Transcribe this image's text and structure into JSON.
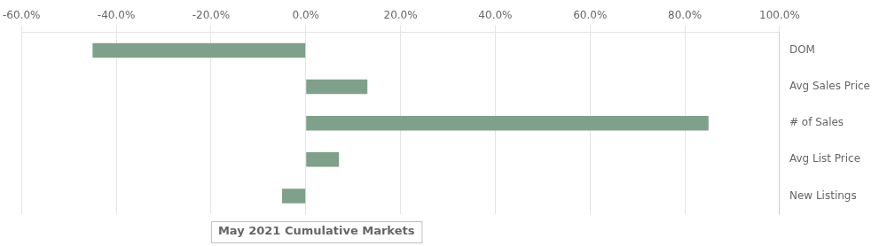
{
  "chart_data": {
    "type": "bar",
    "orientation": "horizontal",
    "categories": [
      "New Listings",
      "Avg List Price",
      "# of Sales",
      "Avg Sales Price",
      "DOM"
    ],
    "values": [
      -0.05,
      0.07,
      0.85,
      0.13,
      -0.45
    ],
    "color": "#7fa08a",
    "xlim": [
      -0.6,
      1.0
    ],
    "xticks": [
      {
        "value": -0.6,
        "label": "-60.0%"
      },
      {
        "value": -0.4,
        "label": "-40.0%"
      },
      {
        "value": -0.2,
        "label": "-20.0%"
      },
      {
        "value": 0.0,
        "label": "0.0%"
      },
      {
        "value": 0.2,
        "label": "20.0%"
      },
      {
        "value": 0.4,
        "label": "40.0%"
      },
      {
        "value": 0.6,
        "label": "60.0%"
      },
      {
        "value": 0.8,
        "label": "80.0%"
      },
      {
        "value": 1.0,
        "label": "100.0%"
      }
    ],
    "grid": true,
    "annotation": "May 2021 Cumulative Markets"
  }
}
